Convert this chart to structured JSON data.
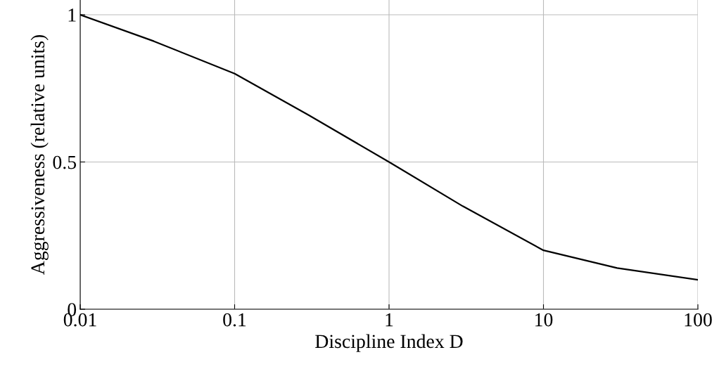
{
  "chart_data": {
    "type": "line",
    "xlabel": "Discipline Index D",
    "ylabel": "Aggressiveness (relative units)",
    "x": [
      0.01,
      0.03,
      0.1,
      0.3,
      1,
      3,
      10,
      30,
      100
    ],
    "series": [
      {
        "color": "#000000",
        "values": [
          1,
          0.91,
          0.8,
          0.66,
          0.5,
          0.35,
          0.2,
          0.14,
          0.1
        ]
      }
    ],
    "log": "x",
    "xlim": [
      0.01,
      100
    ],
    "xticks": [
      0.01,
      0.1,
      1,
      10,
      100
    ],
    "ylim": [
      0,
      1.05
    ],
    "yticks": [
      0,
      0.5,
      1
    ],
    "grid": true,
    "line_style": "solid",
    "marker": "none"
  }
}
